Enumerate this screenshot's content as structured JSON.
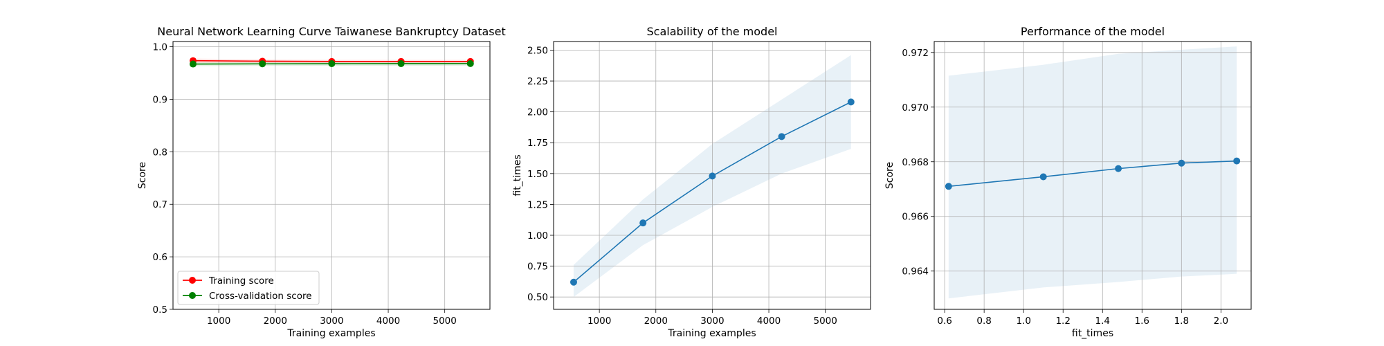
{
  "chart_data": [
    {
      "type": "line",
      "title": "Neural Network Learning Curve Taiwanese Bankruptcy Dataset",
      "xlabel": "Training examples",
      "ylabel": "Score",
      "xlim": [
        190,
        5800
      ],
      "ylim": [
        0.5,
        1.01
      ],
      "xticks": [
        1000,
        2000,
        3000,
        4000,
        5000
      ],
      "yticks": [
        0.5,
        0.6,
        0.7,
        0.8,
        0.9,
        1.0
      ],
      "ytick_decimals": 1,
      "grid": true,
      "legend": "lower-left",
      "x": [
        545,
        1772,
        3000,
        4227,
        5454
      ],
      "series": [
        {
          "name": "Training score",
          "color": "#ff0000",
          "values": [
            0.9735,
            0.9725,
            0.972,
            0.972,
            0.972
          ],
          "band_lower": [
            0.9695,
            0.969,
            0.969,
            0.969,
            0.969
          ],
          "band_upper": [
            0.9775,
            0.976,
            0.975,
            0.975,
            0.975
          ]
        },
        {
          "name": "Cross-validation score",
          "color": "#008000",
          "values": [
            0.9671,
            0.9675,
            0.9678,
            0.9679,
            0.968
          ],
          "band_lower": [
            0.963,
            0.9635,
            0.9637,
            0.9638,
            0.964
          ],
          "band_upper": [
            0.9712,
            0.9715,
            0.9718,
            0.972,
            0.9721
          ]
        }
      ]
    },
    {
      "type": "line",
      "title": "Scalability of the model",
      "xlabel": "Training examples",
      "ylabel": "fit_times",
      "xlim": [
        190,
        5800
      ],
      "ylim": [
        0.4,
        2.57
      ],
      "xticks": [
        1000,
        2000,
        3000,
        4000,
        5000
      ],
      "yticks": [
        0.5,
        0.75,
        1.0,
        1.25,
        1.5,
        1.75,
        2.0,
        2.25,
        2.5
      ],
      "ytick_decimals": 2,
      "grid": true,
      "x": [
        545,
        1772,
        3000,
        4227,
        5454
      ],
      "series": [
        {
          "color": "#1f77b4",
          "values": [
            0.62,
            1.1,
            1.48,
            1.8,
            2.08
          ],
          "band_lower": [
            0.5,
            0.92,
            1.23,
            1.5,
            1.7
          ],
          "band_upper": [
            0.76,
            1.29,
            1.74,
            2.1,
            2.46
          ]
        }
      ]
    },
    {
      "type": "line",
      "title": "Performance of the model",
      "xlabel": "fit_times",
      "ylabel": "Score",
      "xlim": [
        0.547,
        2.153
      ],
      "ylim": [
        0.9626,
        0.9724
      ],
      "xticks": [
        0.6,
        0.8,
        1.0,
        1.2,
        1.4,
        1.6,
        1.8,
        2.0
      ],
      "yticks": [
        0.964,
        0.966,
        0.968,
        0.97,
        0.972
      ],
      "ytick_decimals": 3,
      "xtick_decimals": 1,
      "grid": true,
      "x": [
        0.62,
        1.1,
        1.48,
        1.8,
        2.08
      ],
      "series": [
        {
          "color": "#1f77b4",
          "values": [
            0.9671,
            0.96745,
            0.96775,
            0.96795,
            0.96803
          ],
          "band_lower": [
            0.963,
            0.9634,
            0.9636,
            0.9638,
            0.9639
          ],
          "band_upper": [
            0.97115,
            0.97155,
            0.97195,
            0.9721,
            0.97222
          ]
        }
      ]
    }
  ]
}
